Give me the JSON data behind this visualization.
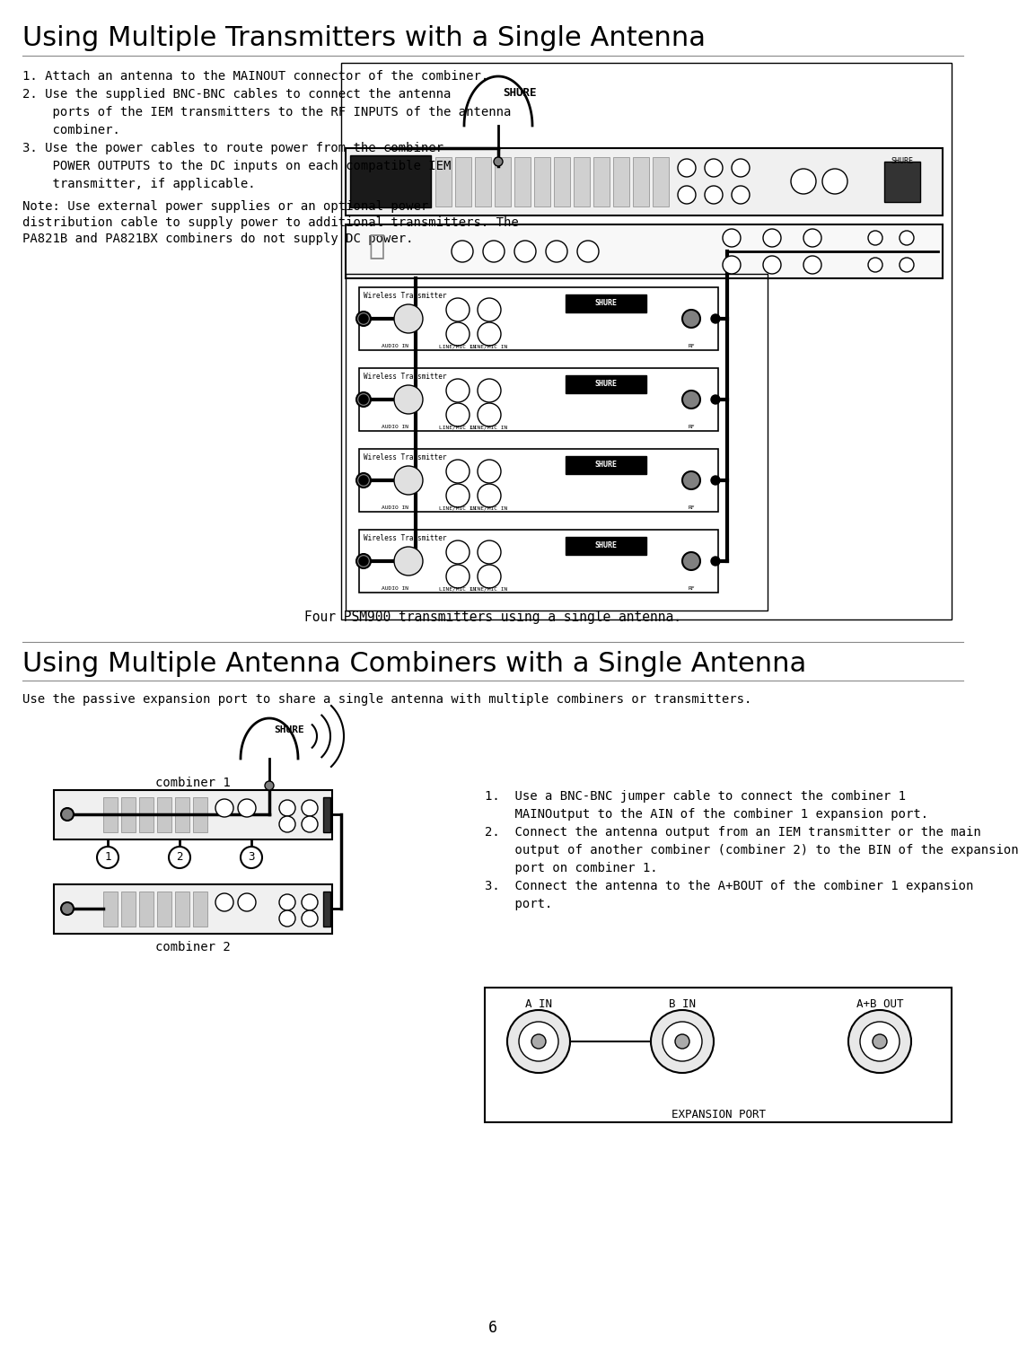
{
  "page_num": "6",
  "bg_color": "#ffffff",
  "title1": "Using Multiple Transmitters with a Single Antenna",
  "title2": "Using Multiple Antenna Combiners with a Single Antenna",
  "body1_lines": [
    "1. Attach an antenna to the MAINOUT connector of the combiner.",
    "2. Use the supplied BNC-BNC cables to connect the antenna",
    "    ports of the IEM transmitters to the RF INPUTS of the antenna",
    "    combiner.",
    "3. Use the power cables to route power from the combiner",
    "    POWER OUTPUTS to the DC inputs on each compatible IEM",
    "    transmitter, if applicable."
  ],
  "note_line": "Note: Use external power supplies or an optional power",
  "note_cont": "distribution cable to supply power to additional transmitters. The",
  "note_cont2": "PA821B and PA821BX combiners do not supply DC power.",
  "caption1": "Four PSM900 transmitters using a single antenna.",
  "body2_line": "Use the passive expansion port to share a single antenna with multiple combiners or transmitters.",
  "combiner1_label": "combiner 1",
  "combiner2_label": "combiner 2",
  "step_lines": [
    "1.  Use a BNC-BNC jumper cable to connect the combiner 1",
    "    MAINOutput to the AIN of the combiner 1 expansion port.",
    "2.  Connect the antenna output from an IEM transmitter or the main",
    "    output of another combiner (combiner 2) to the BIN of the expansion",
    "    port on combiner 1.",
    "3.  Connect the antenna to the A+BOUT of the combiner 1 expansion",
    "    port."
  ],
  "exp_labels": [
    "A IN",
    "B IN",
    "A+B OUT"
  ],
  "exp_port_label": "EXPANSION PORT"
}
